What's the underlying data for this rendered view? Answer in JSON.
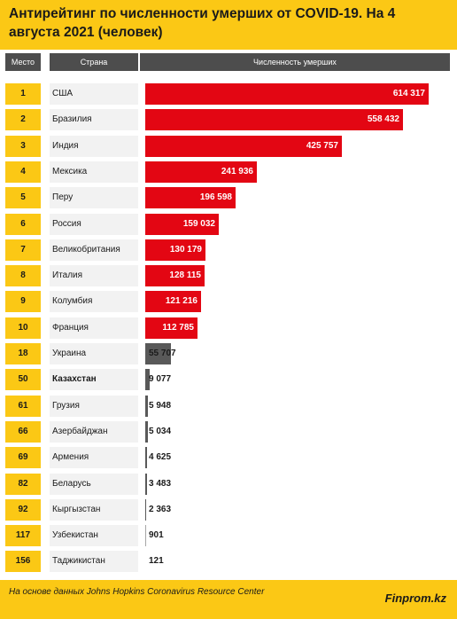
{
  "header": {
    "title": "Антирейтинг по численности умерших от COVID-19. На 4 августа 2021 (человек)"
  },
  "chart_data": {
    "type": "bar",
    "orientation": "horizontal",
    "title": "Антирейтинг по численности умерших от COVID-19. На 4 августа 2021 (человек)",
    "columns": {
      "rank": "Место",
      "country": "Страна",
      "value": "Численность умерших"
    },
    "xlim": [
      0,
      614317
    ],
    "rows": [
      {
        "rank": "1",
        "country": "США",
        "value": 614317,
        "label": "614 317",
        "color": "red"
      },
      {
        "rank": "2",
        "country": "Бразилия",
        "value": 558432,
        "label": "558 432",
        "color": "red"
      },
      {
        "rank": "3",
        "country": "Индия",
        "value": 425757,
        "label": "425 757",
        "color": "red"
      },
      {
        "rank": "4",
        "country": "Мексика",
        "value": 241936,
        "label": "241 936",
        "color": "red"
      },
      {
        "rank": "5",
        "country": "Перу",
        "value": 196598,
        "label": "196 598",
        "color": "red"
      },
      {
        "rank": "6",
        "country": "Россия",
        "value": 159032,
        "label": "159 032",
        "color": "red"
      },
      {
        "rank": "7",
        "country": "Великобритания",
        "value": 130179,
        "label": "130 179",
        "color": "red"
      },
      {
        "rank": "8",
        "country": "Италия",
        "value": 128115,
        "label": "128 115",
        "color": "red"
      },
      {
        "rank": "9",
        "country": "Колумбия",
        "value": 121216,
        "label": "121 216",
        "color": "red"
      },
      {
        "rank": "10",
        "country": "Франция",
        "value": 112785,
        "label": "112 785",
        "color": "red"
      },
      {
        "rank": "18",
        "country": "Украина",
        "value": 55707,
        "label": "55 707",
        "color": "gray"
      },
      {
        "rank": "50",
        "country": "Казахстан",
        "value": 9077,
        "label": "9 077",
        "color": "gray",
        "bold": true
      },
      {
        "rank": "61",
        "country": "Грузия",
        "value": 5948,
        "label": "5 948",
        "color": "gray"
      },
      {
        "rank": "66",
        "country": "Азербайджан",
        "value": 5034,
        "label": "5 034",
        "color": "gray"
      },
      {
        "rank": "69",
        "country": "Армения",
        "value": 4625,
        "label": "4 625",
        "color": "gray"
      },
      {
        "rank": "82",
        "country": "Беларусь",
        "value": 3483,
        "label": "3 483",
        "color": "gray"
      },
      {
        "rank": "92",
        "country": "Кыргызстан",
        "value": 2363,
        "label": "2 363",
        "color": "gray"
      },
      {
        "rank": "117",
        "country": "Узбекистан",
        "value": 901,
        "label": "901",
        "color": "lightgray"
      },
      {
        "rank": "156",
        "country": "Таджикистан",
        "value": 121,
        "label": "121",
        "color": "none"
      }
    ]
  },
  "footer": {
    "source": "На основе данных Johns Hopkins Coronavirus Resource Center",
    "brand": "Finprom.kz"
  },
  "colors": {
    "accent": "#fbc815",
    "red": "#e30613",
    "gray": "#595959",
    "lightgray": "#a6a6a6",
    "header": "#4d4d4d"
  }
}
